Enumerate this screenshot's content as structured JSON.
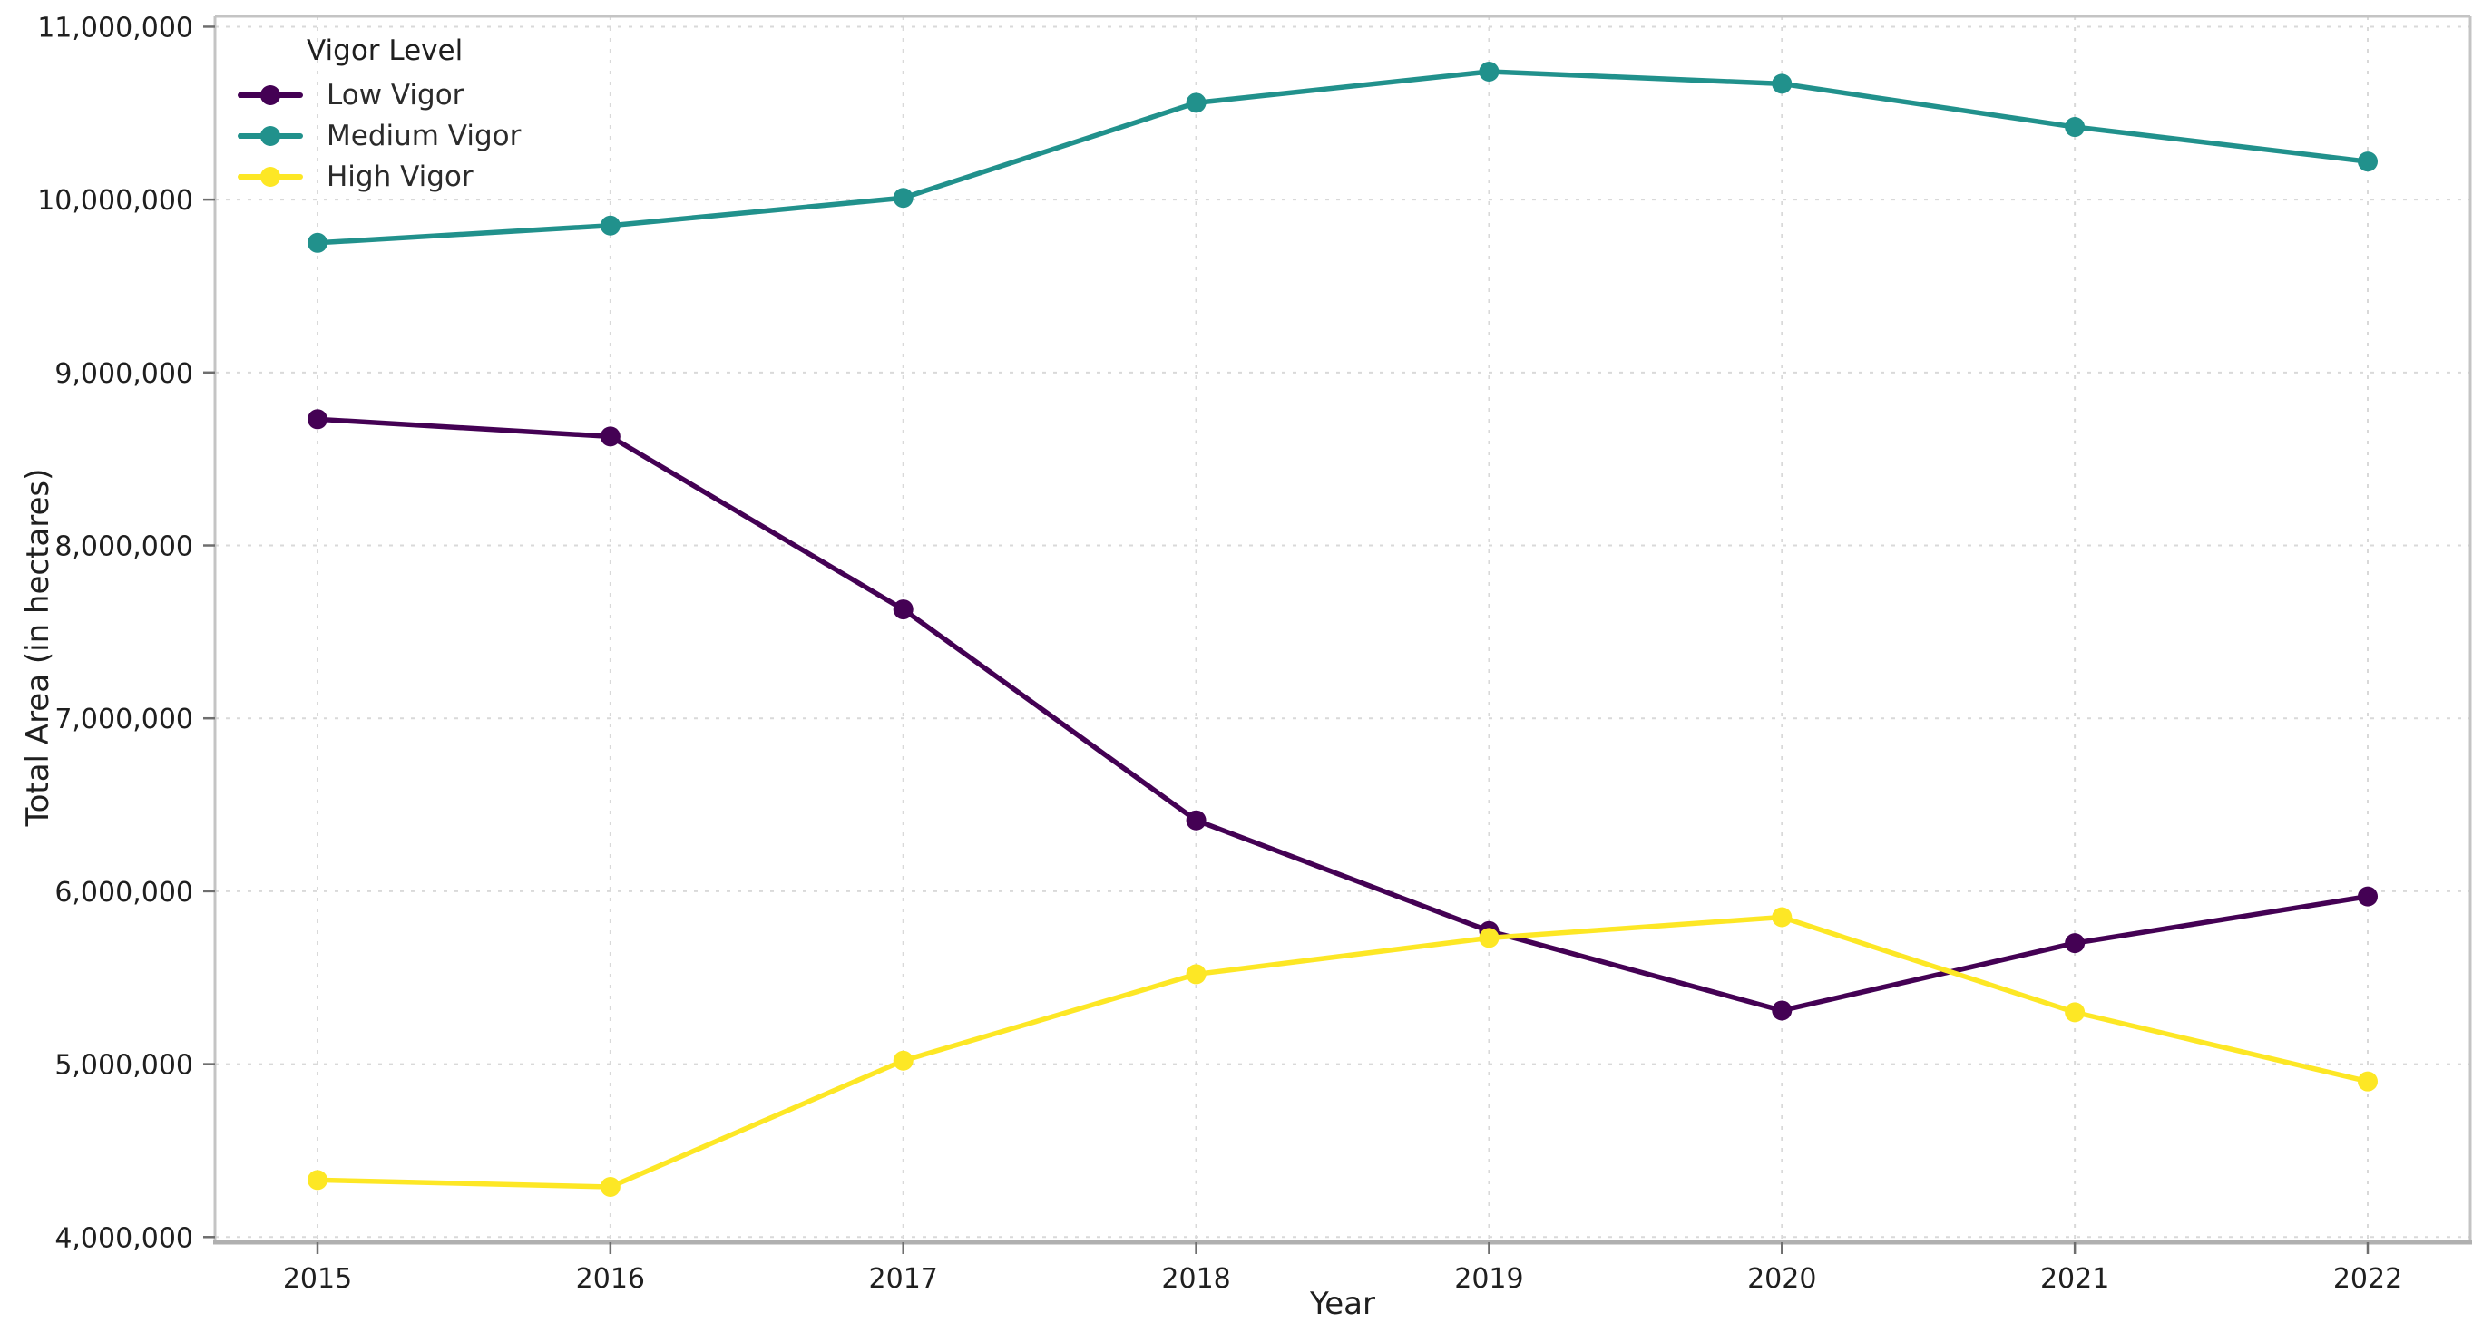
{
  "chart_data": {
    "type": "line",
    "title": "",
    "xlabel": "Year",
    "ylabel": "Total Area (in hectares)",
    "legend_title": "Vigor Level",
    "legend_position": "upper left",
    "grid": true,
    "grid_style": "dashed",
    "background_color": "#ffffff",
    "grid_color": "#d9d9d9",
    "spine_color": "#c4c4c4",
    "bottom_spine_color": "#b0b0b0",
    "tick_text_color": "#1f1f1f",
    "x": [
      "2015",
      "2016",
      "2017",
      "2018",
      "2019",
      "2020",
      "2021",
      "2022"
    ],
    "series": [
      {
        "name": "Low Vigor",
        "color": "#440154",
        "values": [
          8730000,
          8630000,
          7630000,
          6410000,
          5770000,
          5310000,
          5700000,
          5970000
        ]
      },
      {
        "name": "Medium Vigor",
        "color": "#21918c",
        "values": [
          9750000,
          9850000,
          10010000,
          10560000,
          10740000,
          10670000,
          10420000,
          10220000
        ]
      },
      {
        "name": "High Vigor",
        "color": "#fde725",
        "values": [
          4330000,
          4290000,
          5020000,
          5520000,
          5730000,
          5850000,
          5300000,
          4900000
        ]
      }
    ],
    "ylim": [
      3970000,
      11060000
    ],
    "yticks": [
      4000000,
      5000000,
      6000000,
      7000000,
      8000000,
      9000000,
      10000000,
      11000000
    ],
    "ytick_labels": [
      "4,000,000",
      "5,000,000",
      "6,000,000",
      "7,000,000",
      "8,000,000",
      "9,000,000",
      "10,000,000",
      "11,000,000"
    ]
  }
}
